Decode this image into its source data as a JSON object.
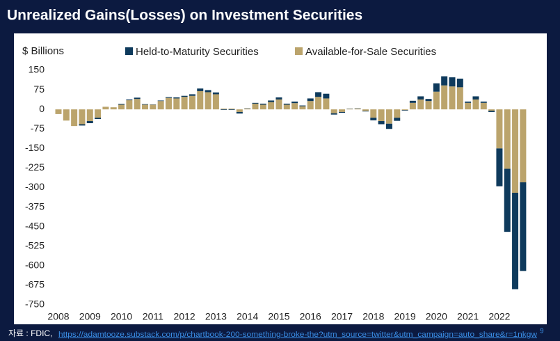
{
  "chart_data": {
    "type": "stacked_bar",
    "title": "Unrealized Gains(Losses) on Investment Securities",
    "y_label": "$ Billions",
    "legend": "top",
    "grid": false,
    "categories": [
      "2008",
      null,
      null,
      null,
      "2009",
      null,
      null,
      null,
      "2010",
      null,
      null,
      null,
      "2011",
      null,
      null,
      null,
      "2012",
      null,
      null,
      null,
      "2013",
      null,
      null,
      null,
      "2014",
      null,
      null,
      null,
      "2015",
      null,
      null,
      null,
      "2016",
      null,
      null,
      null,
      "2017",
      null,
      null,
      null,
      "2018",
      null,
      null,
      null,
      "2019",
      null,
      null,
      null,
      "2020",
      null,
      null,
      null,
      "2021",
      null,
      null,
      null,
      "2022",
      null,
      null,
      null
    ],
    "ylim": [
      -750,
      150
    ],
    "yticks": [
      150,
      75,
      0,
      -75,
      -150,
      -225,
      -300,
      -375,
      -450,
      -525,
      -600,
      -675,
      -750
    ],
    "series": [
      {
        "name": "Available-for-Sale Securities",
        "color": "#bba46c",
        "values": [
          -18,
          -43,
          -64,
          -57,
          -45,
          -32,
          10,
          8,
          18,
          35,
          40,
          18,
          18,
          32,
          44,
          42,
          48,
          52,
          70,
          66,
          58,
          3,
          3,
          -10,
          3,
          22,
          18,
          28,
          38,
          18,
          24,
          12,
          32,
          48,
          42,
          -15,
          -10,
          2,
          3,
          -6,
          -32,
          -45,
          -55,
          -32,
          -3,
          25,
          38,
          32,
          68,
          92,
          88,
          85,
          25,
          38,
          25,
          -5,
          -150,
          -228,
          -320,
          -280
        ]
      },
      {
        "name": "Held-to-Maturity Securities",
        "color": "#0e3a5c",
        "values": [
          0,
          0,
          0,
          -5,
          -8,
          -5,
          0,
          0,
          3,
          3,
          5,
          2,
          1,
          2,
          3,
          4,
          4,
          6,
          10,
          8,
          7,
          -2,
          -2,
          -6,
          1,
          3,
          4,
          6,
          8,
          4,
          6,
          3,
          10,
          18,
          18,
          -5,
          -3,
          1,
          1,
          -2,
          -10,
          -12,
          -20,
          -12,
          -2,
          8,
          12,
          8,
          32,
          35,
          35,
          33,
          5,
          12,
          5,
          -5,
          -145,
          -242,
          -370,
          -340
        ]
      }
    ]
  },
  "footer": {
    "source": "자료 : FDIC,",
    "link": "https://adamtooze.substack.com/p/chartbook-200-something-broke-the?utm_source=twitter&utm_campaign=auto_share&r=1nkgw",
    "page": "9"
  }
}
